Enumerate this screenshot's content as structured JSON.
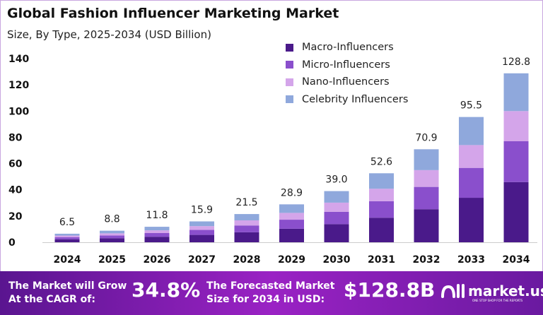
{
  "chart_data": {
    "type": "bar",
    "stacked": true,
    "title": "Global Fashion Influencer Marketing Market",
    "subtitle": "Size, By Type, 2025-2034 (USD Billion)",
    "categories": [
      "2024",
      "2025",
      "2026",
      "2027",
      "2028",
      "2029",
      "2030",
      "2031",
      "2032",
      "2033",
      "2034"
    ],
    "totals": [
      "6.5",
      "8.8",
      "11.8",
      "15.9",
      "21.5",
      "28.9",
      "39.0",
      "52.6",
      "70.9",
      "95.5",
      "128.8"
    ],
    "series": [
      {
        "name": "Macro-Influencers",
        "color": "#4a1a8a",
        "values": [
          2.3,
          3.1,
          4.2,
          5.6,
          7.6,
          10.3,
          13.8,
          18.7,
          25.2,
          33.9,
          45.9
        ]
      },
      {
        "name": "Micro-Influencers",
        "color": "#8a4fcc",
        "values": [
          1.6,
          2.1,
          2.8,
          3.8,
          5.2,
          6.9,
          9.4,
          12.6,
          17.0,
          22.8,
          31.1
        ]
      },
      {
        "name": "Nano-Influencers",
        "color": "#d4a5ea",
        "values": [
          1.2,
          1.6,
          2.1,
          2.9,
          3.9,
          5.2,
          7.0,
          9.5,
          12.8,
          17.4,
          23.0
        ]
      },
      {
        "name": "Celebrity Influencers",
        "color": "#8fa8dc",
        "values": [
          1.4,
          2.0,
          2.7,
          3.6,
          4.8,
          6.5,
          8.8,
          11.8,
          15.9,
          21.4,
          28.8
        ]
      }
    ],
    "yticks": [
      "0",
      "20",
      "40",
      "60",
      "80",
      "100",
      "120",
      "140"
    ],
    "ylim": [
      0,
      140
    ],
    "grid": false,
    "legend": "top-right"
  },
  "footer": {
    "cagr_label_1": "The Market will Grow",
    "cagr_label_2": "At the CAGR of:",
    "cagr_value": "34.8%",
    "forecast_label_1": "The Forecasted Market",
    "forecast_label_2": "Size for 2034 in USD:",
    "forecast_value": "$128.8B",
    "brand": "market.us",
    "brand_tagline": "ONE STOP SHOP FOR THE REPORTS"
  }
}
